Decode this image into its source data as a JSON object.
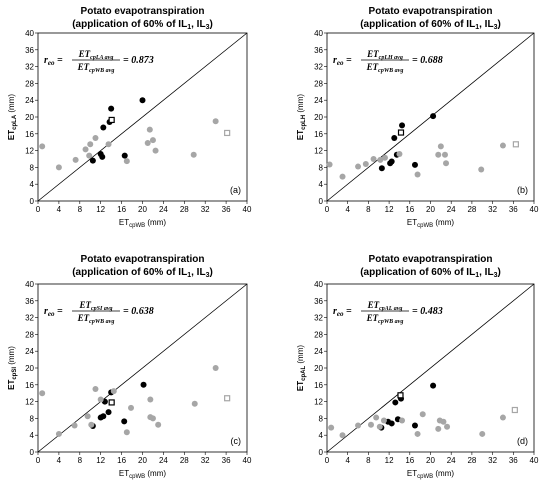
{
  "chart_data": [
    {
      "type": "scatter",
      "title": "Potato evapotranspiration",
      "subtitle_pre": "(application of 60% of IL",
      "subtitle_sub1": "1",
      "subtitle_mid": ", IL",
      "subtitle_sub2": "3",
      "subtitle_post": ")",
      "xlabel_main": "ET",
      "xlabel_sub": "cpWB",
      "xlabel_unit": " (mm)",
      "ylabel_main": "ET",
      "ylabel_sub": "cpLA",
      "ylabel_unit": " (mm)",
      "xlim": [
        0,
        40
      ],
      "ylim": [
        0,
        40
      ],
      "xticks": [
        "0",
        "4",
        "8",
        "12",
        "16",
        "20",
        "24",
        "28",
        "32",
        "36",
        "40"
      ],
      "yticks": [
        "0",
        "4",
        "8",
        "12",
        "16",
        "20",
        "24",
        "28",
        "32",
        "36",
        "40"
      ],
      "eq_lhs": "r",
      "eq_lhs_sub": "eo",
      "eq_num": "ET",
      "eq_num_sub": "cpLA avg",
      "eq_den": "ET",
      "eq_den_sub": "cpWB avg",
      "eq_value": "= 0.873",
      "panel_label": "(a)",
      "series": [
        {
          "marker": "black",
          "color": "#000000",
          "points": [
            [
              10.5,
              9.6
            ],
            [
              12,
              11.2
            ],
            [
              12.5,
              17.5
            ],
            [
              13.7,
              18.8
            ],
            [
              14,
              22
            ],
            [
              12.3,
              10.5
            ],
            [
              16.6,
              10.8
            ],
            [
              20,
              24
            ]
          ]
        },
        {
          "marker": "gray",
          "color": "#a6a6a6",
          "points": [
            [
              0.8,
              13
            ],
            [
              4,
              8
            ],
            [
              7.2,
              9.8
            ],
            [
              9.1,
              12.3
            ],
            [
              9.8,
              10.8
            ],
            [
              10,
              13.5
            ],
            [
              11,
              15
            ],
            [
              13.5,
              13.5
            ],
            [
              17,
              9.5
            ],
            [
              21,
              13.8
            ],
            [
              21.4,
              17
            ],
            [
              22,
              14.5
            ],
            [
              22.5,
              12
            ],
            [
              29.8,
              11
            ],
            [
              34,
              19
            ]
          ]
        },
        {
          "marker": "open-black",
          "color": "#000000",
          "points": [
            [
              14.1,
              19.3
            ]
          ]
        },
        {
          "marker": "open-gray",
          "color": "#a6a6a6",
          "points": [
            [
              36.2,
              16.2
            ]
          ]
        }
      ]
    },
    {
      "type": "scatter",
      "title": "Potato evapotranspiration",
      "subtitle_pre": "(application of 60% of IL",
      "subtitle_sub1": "1",
      "subtitle_mid": ", IL",
      "subtitle_sub2": "3",
      "subtitle_post": ")",
      "xlabel_main": "ET",
      "xlabel_sub": "cpWB",
      "xlabel_unit": " (mm)",
      "ylabel_main": "ET",
      "ylabel_sub": "cpLH",
      "ylabel_unit": " (mm)",
      "xlim": [
        0,
        40
      ],
      "ylim": [
        0,
        40
      ],
      "xticks": [
        "0",
        "4",
        "8",
        "12",
        "16",
        "20",
        "24",
        "28",
        "32",
        "36",
        "40"
      ],
      "yticks": [
        "0",
        "4",
        "8",
        "12",
        "16",
        "20",
        "24",
        "28",
        "32",
        "36",
        "40"
      ],
      "eq_lhs": "r",
      "eq_lhs_sub": "eo",
      "eq_num": "ET",
      "eq_num_sub": "cpLH avg",
      "eq_den": "ET",
      "eq_den_sub": "cpWB avg",
      "eq_value": "= 0.688",
      "panel_label": "(b)",
      "series": [
        {
          "marker": "black",
          "color": "#000000",
          "points": [
            [
              10.6,
              7.8
            ],
            [
              12.2,
              9
            ],
            [
              13,
              15
            ],
            [
              13.5,
              11
            ],
            [
              14.5,
              18
            ],
            [
              17,
              8.6
            ],
            [
              20.5,
              20.2
            ],
            [
              12.5,
              9.4
            ]
          ]
        },
        {
          "marker": "gray",
          "color": "#a6a6a6",
          "points": [
            [
              0.5,
              8.7
            ],
            [
              3,
              5.8
            ],
            [
              6,
              8.2
            ],
            [
              7.5,
              8.8
            ],
            [
              9,
              10
            ],
            [
              10.3,
              9.8
            ],
            [
              11.2,
              10.3
            ],
            [
              14,
              11.2
            ],
            [
              17.5,
              6.3
            ],
            [
              21.5,
              11
            ],
            [
              22,
              13
            ],
            [
              22.8,
              11
            ],
            [
              23,
              9
            ],
            [
              29.8,
              7.5
            ],
            [
              34,
              13.2
            ]
          ]
        },
        {
          "marker": "open-black",
          "color": "#000000",
          "points": [
            [
              14.3,
              16.3
            ]
          ]
        },
        {
          "marker": "open-gray",
          "color": "#a6a6a6",
          "points": [
            [
              36.5,
              13.5
            ]
          ]
        }
      ]
    },
    {
      "type": "scatter",
      "title": "Potato evapotranspiration",
      "subtitle_pre": "(application of 60% of IL",
      "subtitle_sub1": "1",
      "subtitle_mid": ", IL",
      "subtitle_sub2": "3",
      "subtitle_post": ")",
      "xlabel_main": "ET",
      "xlabel_sub": "cpWB",
      "xlabel_unit": " (mm)",
      "ylabel_main": "ET",
      "ylabel_sub": "cpSI",
      "ylabel_unit": " (mm)",
      "xlim": [
        0,
        40
      ],
      "ylim": [
        0,
        40
      ],
      "xticks": [
        "0",
        "4",
        "8",
        "12",
        "16",
        "20",
        "24",
        "28",
        "32",
        "36",
        "40"
      ],
      "yticks": [
        "0",
        "4",
        "8",
        "12",
        "16",
        "20",
        "24",
        "28",
        "32",
        "36",
        "40"
      ],
      "eq_lhs": "r",
      "eq_lhs_sub": "eo",
      "eq_num": "ET",
      "eq_num_sub": "cpSI avg",
      "eq_den": "ET",
      "eq_den_sub": "cpWB avg",
      "eq_value": "= 0.638",
      "panel_label": "(c)",
      "series": [
        {
          "marker": "black",
          "color": "#000000",
          "points": [
            [
              10.5,
              6.2
            ],
            [
              12,
              8.2
            ],
            [
              12.5,
              8.5
            ],
            [
              12.8,
              12
            ],
            [
              13.5,
              9.5
            ],
            [
              14,
              14.2
            ],
            [
              16.5,
              7.3
            ],
            [
              20.2,
              16
            ]
          ]
        },
        {
          "marker": "gray",
          "color": "#a6a6a6",
          "points": [
            [
              0.8,
              14
            ],
            [
              4,
              4.3
            ],
            [
              7,
              6.3
            ],
            [
              9.5,
              8.5
            ],
            [
              10.2,
              6.5
            ],
            [
              11,
              15
            ],
            [
              12,
              12.5
            ],
            [
              14.5,
              14.5
            ],
            [
              17,
              4.7
            ],
            [
              17.8,
              10.5
            ],
            [
              21.5,
              8.3
            ],
            [
              21.5,
              12.5
            ],
            [
              22,
              8
            ],
            [
              23,
              6.5
            ],
            [
              30,
              11.5
            ],
            [
              34,
              20
            ]
          ]
        },
        {
          "marker": "open-black",
          "color": "#000000",
          "points": [
            [
              14.1,
              11.8
            ]
          ]
        },
        {
          "marker": "open-gray",
          "color": "#a6a6a6",
          "points": [
            [
              36.2,
              12.8
            ]
          ]
        }
      ]
    },
    {
      "type": "scatter",
      "title": "Potato evapotranspiration",
      "subtitle_pre": "(application of 60% of IL",
      "subtitle_sub1": "1",
      "subtitle_mid": ", IL",
      "subtitle_sub2": "3",
      "subtitle_post": ")",
      "xlabel_main": "ET",
      "xlabel_sub": "cpWB",
      "xlabel_unit": " (mm)",
      "ylabel_main": "ET",
      "ylabel_sub": "cpAL",
      "ylabel_unit": " (mm)",
      "xlim": [
        0,
        40
      ],
      "ylim": [
        0,
        40
      ],
      "xticks": [
        "0",
        "4",
        "8",
        "12",
        "16",
        "20",
        "24",
        "28",
        "32",
        "36",
        "40"
      ],
      "yticks": [
        "0",
        "4",
        "8",
        "12",
        "16",
        "20",
        "24",
        "28",
        "32",
        "36",
        "40"
      ],
      "eq_lhs": "r",
      "eq_lhs_sub": "eo",
      "eq_num": "ET",
      "eq_num_sub": "cpAL avg",
      "eq_den": "ET",
      "eq_den_sub": "cpWB avg",
      "eq_value": "= 0.483",
      "panel_label": "(d)",
      "series": [
        {
          "marker": "black",
          "color": "#000000",
          "points": [
            [
              10.5,
              5.8
            ],
            [
              11.8,
              7.2
            ],
            [
              12.5,
              6.8
            ],
            [
              13.2,
              11.8
            ],
            [
              13.7,
              7.8
            ],
            [
              14.3,
              12.7
            ],
            [
              17,
              6.3
            ],
            [
              20.5,
              15.8
            ]
          ]
        },
        {
          "marker": "gray",
          "color": "#a6a6a6",
          "points": [
            [
              0.8,
              5.8
            ],
            [
              3,
              4
            ],
            [
              6,
              6.3
            ],
            [
              8.5,
              6.5
            ],
            [
              9.5,
              8.2
            ],
            [
              10.2,
              6
            ],
            [
              11,
              7.5
            ],
            [
              14.5,
              7.5
            ],
            [
              17.5,
              4.3
            ],
            [
              18.5,
              9
            ],
            [
              21.5,
              5.5
            ],
            [
              21.8,
              7.5
            ],
            [
              22.5,
              7.2
            ],
            [
              23.2,
              6
            ],
            [
              30,
              4.3
            ],
            [
              34,
              8.2
            ]
          ]
        },
        {
          "marker": "open-black",
          "color": "#000000",
          "points": [
            [
              14.2,
              13.5
            ]
          ]
        },
        {
          "marker": "open-gray",
          "color": "#a6a6a6",
          "points": [
            [
              36.3,
              10
            ]
          ]
        }
      ]
    }
  ]
}
